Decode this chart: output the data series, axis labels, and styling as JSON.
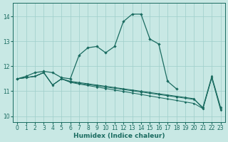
{
  "background_color": "#c8e8e4",
  "grid_color": "#9ececa",
  "line_color": "#1a6b60",
  "xlabel": "Humidex (Indice chaleur)",
  "xlim": [
    -0.5,
    23.5
  ],
  "ylim": [
    9.75,
    14.55
  ],
  "xticks": [
    0,
    1,
    2,
    3,
    4,
    5,
    6,
    7,
    8,
    9,
    10,
    11,
    12,
    13,
    14,
    15,
    16,
    17,
    18,
    19,
    20,
    21,
    22,
    23
  ],
  "yticks": [
    10,
    11,
    12,
    13,
    14
  ],
  "main_x": [
    0,
    1,
    2,
    3,
    4,
    5,
    6,
    7,
    8,
    9,
    10,
    11,
    12,
    13,
    14,
    15,
    16,
    17,
    18
  ],
  "main_y": [
    11.5,
    11.6,
    11.75,
    11.8,
    11.75,
    11.55,
    11.5,
    12.45,
    12.75,
    12.8,
    12.55,
    12.8,
    13.8,
    14.1,
    14.1,
    13.1,
    12.9,
    11.4,
    11.1
  ],
  "line1_x": [
    0,
    1,
    2,
    3,
    4,
    5,
    6,
    7,
    8,
    9,
    10,
    11,
    12,
    13,
    14,
    15,
    16,
    17,
    18,
    19,
    20,
    21,
    22,
    23
  ],
  "line1_y": [
    11.5,
    11.55,
    11.6,
    11.75,
    11.25,
    11.5,
    11.4,
    11.35,
    11.3,
    11.25,
    11.2,
    11.15,
    11.1,
    11.05,
    11.0,
    10.95,
    10.9,
    10.85,
    10.8,
    10.75,
    10.7,
    10.3,
    11.55,
    10.3
  ],
  "line2_x": [
    0,
    1,
    2,
    3,
    4,
    5,
    6,
    7,
    8,
    9,
    10,
    11,
    12,
    13,
    14,
    15,
    16,
    17,
    18,
    19,
    20,
    21,
    22,
    23
  ],
  "line2_y": [
    11.5,
    11.55,
    11.6,
    11.75,
    11.25,
    11.5,
    11.38,
    11.32,
    11.27,
    11.22,
    11.17,
    11.12,
    11.07,
    11.02,
    10.97,
    10.92,
    10.87,
    10.82,
    10.77,
    10.72,
    10.67,
    10.35,
    11.6,
    10.35
  ],
  "line3_x": [
    0,
    1,
    2,
    3,
    4,
    5,
    6,
    7,
    8,
    9,
    10,
    11,
    12,
    13,
    14,
    15,
    16,
    17,
    18,
    19,
    20,
    21,
    22,
    23
  ],
  "line3_y": [
    11.5,
    11.55,
    11.6,
    11.75,
    11.25,
    11.5,
    11.36,
    11.29,
    11.23,
    11.17,
    11.11,
    11.05,
    10.99,
    10.93,
    10.87,
    10.81,
    10.75,
    10.69,
    10.63,
    10.57,
    10.51,
    10.3,
    11.55,
    10.25
  ]
}
